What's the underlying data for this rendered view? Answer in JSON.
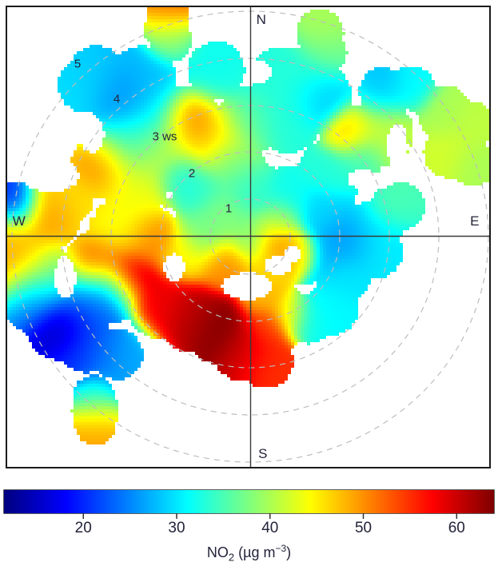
{
  "compass": {
    "north": "N",
    "east": "E",
    "south": "S",
    "west": "W"
  },
  "ring_labels": [
    "1",
    "2",
    "3 ws",
    "4",
    "5"
  ],
  "colorbar": {
    "vmin": 11.5,
    "vmax": 64,
    "ticks": [
      "20",
      "30",
      "40",
      "50",
      "60"
    ],
    "title": {
      "pre": "NO",
      "sub": "2",
      "mid": " (µg m",
      "sup": "−3",
      "post": ")"
    }
  },
  "chart_data": {
    "type": "heatmap",
    "projection": "polar",
    "angle_unit": "wind direction, degrees clockwise from North",
    "radial_unit": "wind speed ws",
    "value_unit": "NO2 concentration (µg m-3)",
    "rings_ws": [
      1,
      2,
      3,
      4,
      5
    ],
    "value_range": [
      11.5,
      64
    ],
    "points_format": [
      "wd_deg",
      "ws",
      "no2",
      "smooth_sigma_px",
      "mask_radius_px"
    ],
    "points": [
      [
        278,
        5.01,
        20,
        18,
        30
      ],
      [
        270,
        5.0,
        47,
        20,
        42
      ],
      [
        276,
        4.27,
        50,
        20,
        42
      ],
      [
        263,
        4.96,
        50,
        26,
        42
      ],
      [
        258,
        4.44,
        38,
        26,
        42
      ],
      [
        244,
        4.43,
        13,
        20,
        45
      ],
      [
        253,
        4.76,
        22,
        22,
        42
      ],
      [
        235,
        4.21,
        20,
        26,
        34
      ],
      [
        227,
        3.82,
        27,
        26,
        32
      ],
      [
        247,
        3.8,
        24,
        26,
        42
      ],
      [
        259,
        3.3,
        54,
        20,
        42
      ],
      [
        251,
        2.72,
        63,
        20,
        42
      ],
      [
        231,
        2.43,
        58,
        20,
        42
      ],
      [
        215,
        2.2,
        61,
        22,
        42
      ],
      [
        198,
        2.18,
        64,
        20,
        42
      ],
      [
        183,
        2.5,
        60,
        20,
        40
      ],
      [
        173,
        2.78,
        55,
        18,
        34
      ],
      [
        168,
        1.34,
        48,
        16,
        42
      ],
      [
        154,
        1.89,
        45,
        14,
        30
      ],
      [
        146,
        2.18,
        32,
        16,
        32
      ],
      [
        133,
        2.33,
        31,
        18,
        34
      ],
      [
        114,
        2.15,
        30,
        18,
        34
      ],
      [
        0,
        0,
        38,
        18,
        42
      ],
      [
        107,
        0.56,
        50,
        16,
        42
      ],
      [
        59,
        0.72,
        41,
        14,
        30
      ],
      [
        311,
        0.84,
        38,
        18,
        42
      ],
      [
        314,
        1.48,
        33,
        18,
        42
      ],
      [
        268,
        2.1,
        51,
        18,
        42
      ],
      [
        272,
        2.71,
        44,
        26,
        42
      ],
      [
        333,
        2.9,
        53,
        20,
        42
      ],
      [
        341,
        2.32,
        47,
        26,
        42
      ],
      [
        316,
        2.64,
        42,
        26,
        42
      ],
      [
        319,
        4.15,
        24,
        22,
        42
      ],
      [
        318,
        4.83,
        28,
        26,
        36
      ],
      [
        327,
        4.15,
        28,
        26,
        42
      ],
      [
        323,
        3.4,
        30,
        26,
        42
      ],
      [
        308,
        3.27,
        33,
        26,
        42
      ],
      [
        297,
        3.45,
        52,
        20,
        42
      ],
      [
        282,
        3.84,
        46,
        26,
        28
      ],
      [
        295,
        2.69,
        44,
        26,
        42
      ],
      [
        312,
        1.98,
        31,
        16,
        42
      ],
      [
        0,
        0.99,
        34,
        18,
        42
      ],
      [
        17,
        2.7,
        33,
        20,
        42
      ],
      [
        25,
        3.41,
        28,
        20,
        42
      ],
      [
        42,
        3.09,
        47,
        16,
        36
      ],
      [
        41,
        4.26,
        28,
        18,
        30
      ],
      [
        46,
        4.73,
        31,
        16,
        28
      ],
      [
        56,
        4.92,
        40,
        18,
        34
      ],
      [
        62,
        5.25,
        41,
        16,
        30
      ],
      [
        66,
        4.58,
        42,
        18,
        32
      ],
      [
        71,
        4.96,
        40,
        16,
        28
      ],
      [
        54,
        2.9,
        34,
        16,
        26
      ],
      [
        78,
        3.25,
        35,
        18,
        30
      ],
      [
        44,
        1.13,
        32,
        18,
        42
      ],
      [
        71,
        1.64,
        29,
        18,
        42
      ],
      [
        91,
        2.13,
        24,
        20,
        42
      ],
      [
        100,
        1.69,
        27,
        18,
        42
      ],
      [
        86,
        2.61,
        31,
        26,
        36
      ],
      [
        77,
        3.0,
        36,
        14,
        24
      ],
      [
        97,
        2.66,
        30,
        26,
        34
      ],
      [
        341,
        5.25,
        52,
        16,
        26
      ],
      [
        339,
        4.91,
        43,
        16,
        28
      ],
      [
        339,
        4.64,
        37,
        16,
        26
      ],
      [
        18,
        4.74,
        40,
        18,
        30
      ],
      [
        21,
        4.37,
        37,
        18,
        28
      ],
      [
        223,
        4.82,
        33,
        14,
        26
      ],
      [
        220,
        5.05,
        41,
        14,
        30
      ],
      [
        218,
        5.28,
        49,
        14,
        26
      ],
      [
        314,
        4.83,
        30,
        26,
        34
      ],
      [
        349,
        3.75,
        32,
        26,
        36
      ],
      [
        10,
        3.61,
        33,
        26,
        36
      ],
      [
        17,
        3.62,
        33,
        26,
        40
      ],
      [
        0,
        2.58,
        35,
        22,
        42
      ],
      [
        50,
        3.57,
        41,
        26,
        42
      ],
      [
        50,
        2.23,
        33,
        18,
        42
      ],
      [
        346,
        1.66,
        36,
        20,
        42
      ],
      [
        271,
        0.97,
        37,
        18,
        42
      ],
      [
        253,
        1.45,
        45,
        18,
        42
      ],
      [
        222,
        0.81,
        50,
        18,
        42
      ],
      [
        155,
        0.86,
        46,
        14,
        30
      ],
      [
        108,
        1.09,
        47,
        14,
        42
      ],
      [
        170,
        2.05,
        54,
        16,
        42
      ],
      [
        248,
        3.18,
        23,
        20,
        42
      ]
    ],
    "mask_holes_format": [
      "wd_deg",
      "ws",
      "rx_px",
      "ry_px"
    ],
    "mask_holes": [
      [
        183,
        1.1,
        32,
        17
      ],
      [
        137,
        0.87,
        17,
        12
      ],
      [
        114,
        0.97,
        11,
        11
      ],
      [
        247,
        1.74,
        13,
        17
      ],
      [
        257,
        3.99,
        13,
        26
      ],
      [
        288,
        4.38,
        34,
        21
      ],
      [
        304,
        4.01,
        15,
        22
      ],
      [
        299,
        1.92,
        5,
        5
      ],
      [
        279,
        3.33,
        4,
        4
      ],
      [
        57,
        3.69,
        13,
        28
      ],
      [
        62,
        2.7,
        20,
        12
      ],
      [
        3,
        3.66,
        16,
        14
      ]
    ]
  }
}
